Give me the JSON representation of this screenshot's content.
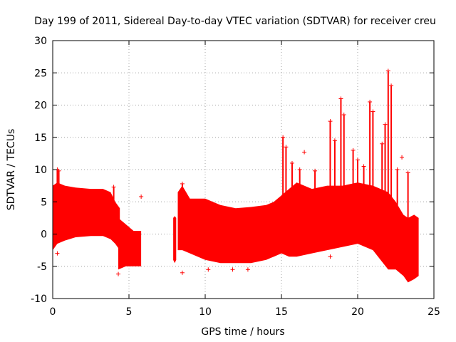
{
  "chart_data": {
    "type": "scatter",
    "title": "Day 199 of 2011, Sidereal Day-to-day VTEC variation (SDTVAR) for receiver creu",
    "xlabel": "GPS time / hours",
    "ylabel": "SDTVAR / TECUs",
    "xlim": [
      0,
      25
    ],
    "ylim": [
      -10,
      30
    ],
    "xticks": [
      "0",
      "5",
      "10",
      "15",
      "20",
      "25"
    ],
    "yticks": [
      "-10",
      "-5",
      "0",
      "5",
      "10",
      "15",
      "20",
      "25",
      "30"
    ],
    "grid": true,
    "marker": "+",
    "color": "#ff0000",
    "series": [
      {
        "name": "SDTVAR",
        "segments": [
          {
            "envelope_x": [
              0.0,
              0.3,
              0.8,
              1.5,
              2.5,
              3.3,
              3.8,
              4.1,
              4.4
            ],
            "envelope_upper": [
              7.5,
              8.0,
              7.5,
              7.2,
              7.0,
              7.0,
              6.5,
              5.0,
              4.0
            ],
            "envelope_lower": [
              -2.5,
              -1.5,
              -1.0,
              -0.5,
              -0.3,
              -0.3,
              -0.8,
              -1.5,
              -2.5
            ]
          },
          {
            "envelope_x": [
              4.3,
              4.8,
              5.3,
              5.8
            ],
            "envelope_upper": [
              2.5,
              1.5,
              0.5,
              0.5
            ],
            "envelope_lower": [
              -5.5,
              -5.0,
              -5.0,
              -5.0
            ]
          },
          {
            "envelope_x": [
              7.9,
              8.0,
              8.1
            ],
            "envelope_upper": [
              2.5,
              2.8,
              2.5
            ],
            "envelope_lower": [
              -4.0,
              -4.5,
              -4.0
            ]
          },
          {
            "envelope_x": [
              8.2,
              8.5,
              9.0,
              10.0,
              11.0,
              12.0,
              13.0,
              14.0,
              14.5,
              15.0,
              15.5,
              16.0,
              17.0,
              18.0,
              19.0,
              20.0,
              21.0,
              21.5,
              22.0,
              22.5,
              23.0,
              23.3,
              23.7,
              24.0
            ],
            "envelope_upper": [
              6.5,
              7.5,
              5.5,
              5.5,
              4.5,
              4.0,
              4.2,
              4.5,
              5.0,
              6.0,
              7.0,
              8.0,
              7.0,
              7.5,
              7.5,
              8.0,
              7.5,
              7.0,
              6.5,
              5.0,
              3.0,
              2.5,
              3.0,
              2.5
            ],
            "envelope_lower": [
              -2.5,
              -2.5,
              -3.0,
              -4.0,
              -4.5,
              -4.5,
              -4.5,
              -4.0,
              -3.5,
              -3.0,
              -3.5,
              -3.5,
              -3.0,
              -2.5,
              -2.0,
              -1.5,
              -2.5,
              -4.0,
              -5.5,
              -5.5,
              -6.5,
              -7.5,
              -7.0,
              -6.5
            ]
          }
        ],
        "spikes": [
          {
            "x": 0.3,
            "y_max": 10.0
          },
          {
            "x": 0.4,
            "y_max": 9.8
          },
          {
            "x": 4.0,
            "y_max": 7.3
          },
          {
            "x": 8.5,
            "y_max": 7.8
          },
          {
            "x": 15.1,
            "y_max": 15.0
          },
          {
            "x": 15.3,
            "y_max": 13.5
          },
          {
            "x": 15.7,
            "y_max": 11.0
          },
          {
            "x": 16.2,
            "y_max": 10.0
          },
          {
            "x": 17.2,
            "y_max": 9.8
          },
          {
            "x": 18.2,
            "y_max": 17.5
          },
          {
            "x": 18.5,
            "y_max": 14.5
          },
          {
            "x": 18.9,
            "y_max": 21.0
          },
          {
            "x": 19.1,
            "y_max": 18.5
          },
          {
            "x": 19.7,
            "y_max": 13.0
          },
          {
            "x": 20.0,
            "y_max": 11.5
          },
          {
            "x": 20.4,
            "y_max": 10.5
          },
          {
            "x": 20.8,
            "y_max": 20.5
          },
          {
            "x": 21.0,
            "y_max": 19.0
          },
          {
            "x": 21.6,
            "y_max": 14.0
          },
          {
            "x": 21.8,
            "y_max": 17.0
          },
          {
            "x": 22.0,
            "y_max": 25.3
          },
          {
            "x": 22.2,
            "y_max": 23.0
          },
          {
            "x": 22.6,
            "y_max": 10.0
          },
          {
            "x": 23.3,
            "y_max": 9.5
          }
        ],
        "outliers": [
          {
            "x": 0.3,
            "y": -3.0
          },
          {
            "x": 4.3,
            "y": -6.2
          },
          {
            "x": 5.8,
            "y": 5.8
          },
          {
            "x": 8.5,
            "y": -6.0
          },
          {
            "x": 10.2,
            "y": -5.5
          },
          {
            "x": 11.8,
            "y": -5.5
          },
          {
            "x": 12.8,
            "y": -5.5
          },
          {
            "x": 16.5,
            "y": 12.7
          },
          {
            "x": 18.2,
            "y": -3.5
          },
          {
            "x": 22.9,
            "y": 11.9
          }
        ]
      }
    ]
  }
}
